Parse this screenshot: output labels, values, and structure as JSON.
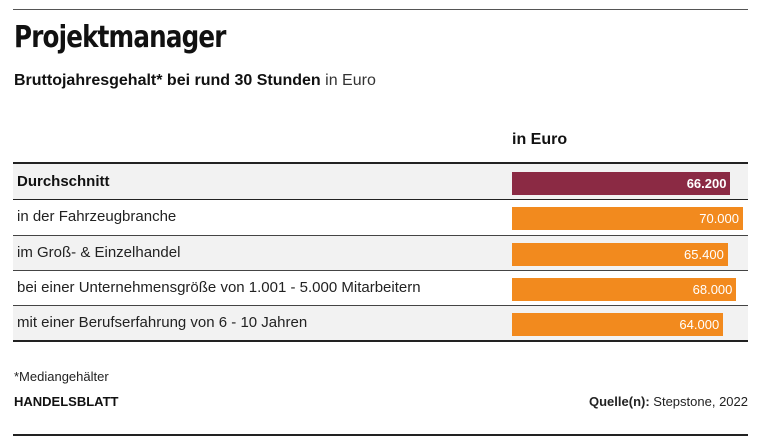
{
  "header": {
    "title": "Projektmanager",
    "subtitle_bold": "Bruttojahresgehalt* bei rund 30 Stunden",
    "subtitle_light": "in Euro"
  },
  "table": {
    "column_header": "in Euro"
  },
  "chart_data": {
    "type": "bar",
    "orientation": "horizontal",
    "categories": [
      "Durchschnitt",
      "in der Fahrzeugbranche",
      "im Groß- & Einzelhandel",
      "bei einer Unternehmensgröße von 1.001 - 5.000 Mitarbeitern",
      "mit einer Berufserfahrung von 6 - 10 Jahren"
    ],
    "values": [
      66200,
      70000,
      65400,
      68000,
      64000
    ],
    "value_labels": [
      "66.200",
      "70.000",
      "65.400",
      "68.000",
      "64.000"
    ],
    "highlight_index": 0,
    "xlim": [
      0,
      70000
    ],
    "colors": {
      "highlight": "#8b2a44",
      "default": "#f28a1e"
    }
  },
  "footer": {
    "footnote": "*Mediangehälter",
    "brand": "HANDELSBLATT",
    "source_label": "Quelle(n):",
    "source_text": "Stepstone, 2022"
  }
}
